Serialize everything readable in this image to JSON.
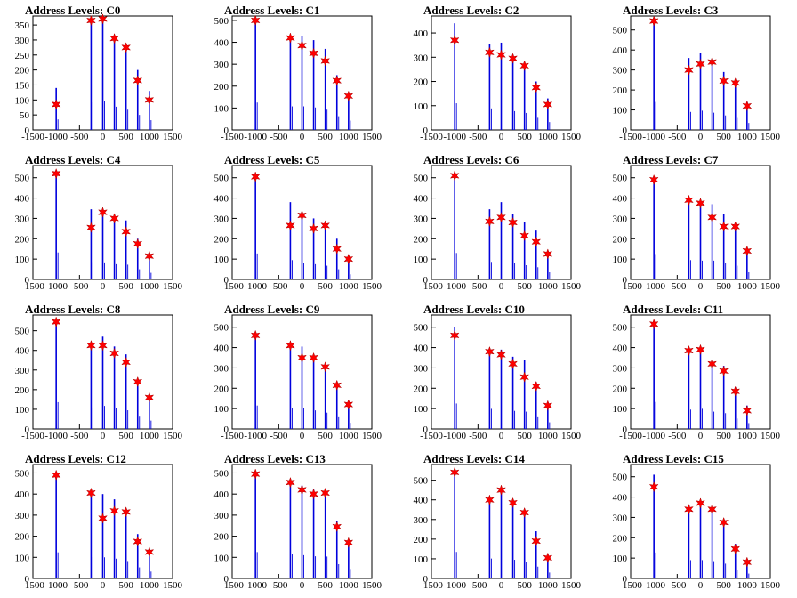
{
  "colors": {
    "bar": "#0000dd",
    "peak_marker": "#ff0000",
    "axis": "#000000"
  },
  "x_axis": {
    "ticks": [
      -1500,
      -1000,
      -500,
      0,
      500,
      1000,
      1500
    ],
    "tick_labels": [
      "-1500",
      "-1000",
      "-500",
      "0",
      "500",
      "1000",
      "1500"
    ],
    "range": [
      -1500,
      1500
    ]
  },
  "chart_data": [
    {
      "type": "bar",
      "title": "Address Levels: C0",
      "ylim": [
        0,
        380
      ],
      "yticks": [
        0,
        50,
        100,
        150,
        200,
        250,
        300,
        350
      ],
      "x": [
        -1000,
        -250,
        0,
        250,
        500,
        750,
        1000
      ],
      "values": [
        140,
        370,
        380,
        310,
        270,
        200,
        130
      ],
      "peaks": [
        {
          "x": -1000,
          "y": 85
        },
        {
          "x": -250,
          "y": 365
        },
        {
          "x": 0,
          "y": 370
        },
        {
          "x": 250,
          "y": 305
        },
        {
          "x": 500,
          "y": 275
        },
        {
          "x": 750,
          "y": 165
        },
        {
          "x": 1000,
          "y": 100
        }
      ]
    },
    {
      "type": "bar",
      "title": "Address Levels: C1",
      "ylim": [
        0,
        520
      ],
      "yticks": [
        0,
        100,
        200,
        300,
        400,
        500
      ],
      "x": [
        -1000,
        -250,
        0,
        250,
        500,
        750,
        1000
      ],
      "values": [
        500,
        430,
        430,
        410,
        370,
        250,
        170
      ],
      "peaks": [
        {
          "x": -1000,
          "y": 500
        },
        {
          "x": -250,
          "y": 420
        },
        {
          "x": 0,
          "y": 385
        },
        {
          "x": 250,
          "y": 350
        },
        {
          "x": 500,
          "y": 315
        },
        {
          "x": 750,
          "y": 225
        },
        {
          "x": 1000,
          "y": 155
        }
      ]
    },
    {
      "type": "bar",
      "title": "Address Levels: C2",
      "ylim": [
        0,
        470
      ],
      "yticks": [
        0,
        100,
        200,
        300,
        400
      ],
      "x": [
        -1000,
        -250,
        0,
        250,
        500,
        750,
        1000
      ],
      "values": [
        440,
        355,
        360,
        310,
        280,
        200,
        130
      ],
      "peaks": [
        {
          "x": -1000,
          "y": 370
        },
        {
          "x": -250,
          "y": 320
        },
        {
          "x": 0,
          "y": 310
        },
        {
          "x": 250,
          "y": 295
        },
        {
          "x": 500,
          "y": 265
        },
        {
          "x": 750,
          "y": 175
        },
        {
          "x": 1000,
          "y": 105
        }
      ]
    },
    {
      "type": "bar",
      "title": "Address Levels: C3",
      "ylim": [
        0,
        570
      ],
      "yticks": [
        0,
        100,
        200,
        300,
        400,
        500
      ],
      "x": [
        -1000,
        -250,
        0,
        250,
        500,
        750,
        1000
      ],
      "values": [
        560,
        360,
        385,
        345,
        290,
        240,
        140
      ],
      "peaks": [
        {
          "x": -1000,
          "y": 545
        },
        {
          "x": -250,
          "y": 300
        },
        {
          "x": 0,
          "y": 330
        },
        {
          "x": 250,
          "y": 340
        },
        {
          "x": 500,
          "y": 245
        },
        {
          "x": 750,
          "y": 235
        },
        {
          "x": 1000,
          "y": 120
        }
      ]
    },
    {
      "type": "bar",
      "title": "Address Levels: C4",
      "ylim": [
        0,
        560
      ],
      "yticks": [
        0,
        100,
        200,
        300,
        400,
        500
      ],
      "x": [
        -1000,
        -250,
        0,
        250,
        500,
        750,
        1000
      ],
      "values": [
        530,
        345,
        335,
        300,
        290,
        200,
        130
      ],
      "peaks": [
        {
          "x": -1000,
          "y": 520
        },
        {
          "x": -250,
          "y": 255
        },
        {
          "x": 0,
          "y": 330
        },
        {
          "x": 250,
          "y": 300
        },
        {
          "x": 500,
          "y": 235
        },
        {
          "x": 750,
          "y": 175
        },
        {
          "x": 1000,
          "y": 115
        }
      ]
    },
    {
      "type": "bar",
      "title": "Address Levels: C5",
      "ylim": [
        0,
        560
      ],
      "yticks": [
        0,
        100,
        200,
        300,
        400,
        500
      ],
      "x": [
        -1000,
        -250,
        0,
        250,
        500,
        750,
        1000
      ],
      "values": [
        510,
        380,
        330,
        300,
        270,
        200,
        100
      ],
      "peaks": [
        {
          "x": -1000,
          "y": 505
        },
        {
          "x": -250,
          "y": 265
        },
        {
          "x": 0,
          "y": 315
        },
        {
          "x": 250,
          "y": 250
        },
        {
          "x": 500,
          "y": 265
        },
        {
          "x": 750,
          "y": 150
        },
        {
          "x": 1000,
          "y": 100
        }
      ]
    },
    {
      "type": "bar",
      "title": "Address Levels: C6",
      "ylim": [
        0,
        560
      ],
      "yticks": [
        0,
        100,
        200,
        300,
        400,
        500
      ],
      "x": [
        -1000,
        -250,
        0,
        250,
        500,
        750,
        1000
      ],
      "values": [
        520,
        345,
        380,
        320,
        280,
        240,
        140
      ],
      "peaks": [
        {
          "x": -1000,
          "y": 510
        },
        {
          "x": -250,
          "y": 285
        },
        {
          "x": 0,
          "y": 305
        },
        {
          "x": 250,
          "y": 280
        },
        {
          "x": 500,
          "y": 215
        },
        {
          "x": 750,
          "y": 185
        },
        {
          "x": 1000,
          "y": 125
        }
      ]
    },
    {
      "type": "bar",
      "title": "Address Levels: C7",
      "ylim": [
        0,
        560
      ],
      "yticks": [
        0,
        100,
        200,
        300,
        400,
        500
      ],
      "x": [
        -1000,
        -250,
        0,
        250,
        500,
        750,
        1000
      ],
      "values": [
        500,
        380,
        370,
        370,
        320,
        270,
        140
      ],
      "peaks": [
        {
          "x": -1000,
          "y": 490
        },
        {
          "x": -250,
          "y": 390
        },
        {
          "x": 0,
          "y": 375
        },
        {
          "x": 250,
          "y": 305
        },
        {
          "x": 500,
          "y": 260
        },
        {
          "x": 750,
          "y": 260
        },
        {
          "x": 1000,
          "y": 140
        }
      ]
    },
    {
      "type": "bar",
      "title": "Address Levels: C8",
      "ylim": [
        0,
        580
      ],
      "yticks": [
        0,
        100,
        200,
        300,
        400,
        500
      ],
      "x": [
        -1000,
        -250,
        0,
        250,
        500,
        750,
        1000
      ],
      "values": [
        545,
        440,
        470,
        420,
        380,
        250,
        170
      ],
      "peaks": [
        {
          "x": -1000,
          "y": 545
        },
        {
          "x": -250,
          "y": 425
        },
        {
          "x": 0,
          "y": 425
        },
        {
          "x": 250,
          "y": 385
        },
        {
          "x": 500,
          "y": 340
        },
        {
          "x": 750,
          "y": 240
        },
        {
          "x": 1000,
          "y": 160
        }
      ]
    },
    {
      "type": "bar",
      "title": "Address Levels: C9",
      "ylim": [
        0,
        560
      ],
      "yticks": [
        0,
        100,
        200,
        300,
        400,
        500
      ],
      "x": [
        -1000,
        -250,
        0,
        250,
        500,
        750,
        1000
      ],
      "values": [
        460,
        410,
        405,
        365,
        320,
        230,
        120
      ],
      "peaks": [
        {
          "x": -1000,
          "y": 460
        },
        {
          "x": -250,
          "y": 410
        },
        {
          "x": 0,
          "y": 350
        },
        {
          "x": 250,
          "y": 350
        },
        {
          "x": 500,
          "y": 305
        },
        {
          "x": 750,
          "y": 215
        },
        {
          "x": 1000,
          "y": 120
        }
      ]
    },
    {
      "type": "bar",
      "title": "Address Levels: C10",
      "ylim": [
        0,
        560
      ],
      "yticks": [
        0,
        100,
        200,
        300,
        400,
        500
      ],
      "x": [
        -1000,
        -250,
        0,
        250,
        500,
        750,
        1000
      ],
      "values": [
        500,
        395,
        390,
        355,
        340,
        230,
        130
      ],
      "peaks": [
        {
          "x": -1000,
          "y": 460
        },
        {
          "x": -250,
          "y": 380
        },
        {
          "x": 0,
          "y": 365
        },
        {
          "x": 250,
          "y": 320
        },
        {
          "x": 500,
          "y": 255
        },
        {
          "x": 750,
          "y": 210
        },
        {
          "x": 1000,
          "y": 115
        }
      ]
    },
    {
      "type": "bar",
      "title": "Address Levels: C11",
      "ylim": [
        0,
        560
      ],
      "yticks": [
        0,
        100,
        200,
        300,
        400,
        500
      ],
      "x": [
        -1000,
        -250,
        0,
        250,
        500,
        750,
        1000
      ],
      "values": [
        530,
        380,
        395,
        340,
        310,
        205,
        115
      ],
      "peaks": [
        {
          "x": -1000,
          "y": 515
        },
        {
          "x": -250,
          "y": 385
        },
        {
          "x": 0,
          "y": 390
        },
        {
          "x": 250,
          "y": 320
        },
        {
          "x": 500,
          "y": 285
        },
        {
          "x": 750,
          "y": 185
        },
        {
          "x": 1000,
          "y": 90
        }
      ]
    },
    {
      "type": "bar",
      "title": "Address Levels: C12",
      "ylim": [
        0,
        540
      ],
      "yticks": [
        0,
        100,
        200,
        300,
        400,
        500
      ],
      "x": [
        -1000,
        -250,
        0,
        250,
        500,
        750,
        1000
      ],
      "values": [
        495,
        405,
        400,
        375,
        330,
        210,
        130
      ],
      "peaks": [
        {
          "x": -1000,
          "y": 490
        },
        {
          "x": -250,
          "y": 405
        },
        {
          "x": 0,
          "y": 285
        },
        {
          "x": 250,
          "y": 320
        },
        {
          "x": 500,
          "y": 315
        },
        {
          "x": 750,
          "y": 175
        },
        {
          "x": 1000,
          "y": 125
        }
      ]
    },
    {
      "type": "bar",
      "title": "Address Levels: C13",
      "ylim": [
        0,
        540
      ],
      "yticks": [
        0,
        100,
        200,
        300,
        400,
        500
      ],
      "x": [
        -1000,
        -250,
        0,
        250,
        500,
        750,
        1000
      ],
      "values": [
        500,
        460,
        440,
        420,
        415,
        270,
        180
      ],
      "peaks": [
        {
          "x": -1000,
          "y": 495
        },
        {
          "x": -250,
          "y": 455
        },
        {
          "x": 0,
          "y": 420
        },
        {
          "x": 250,
          "y": 400
        },
        {
          "x": 500,
          "y": 405
        },
        {
          "x": 750,
          "y": 245
        },
        {
          "x": 1000,
          "y": 170
        }
      ]
    },
    {
      "type": "bar",
      "title": "Address Levels: C14",
      "ylim": [
        0,
        580
      ],
      "yticks": [
        0,
        100,
        200,
        300,
        400,
        500
      ],
      "x": [
        -1000,
        -250,
        0,
        250,
        500,
        750,
        1000
      ],
      "values": [
        540,
        405,
        440,
        380,
        340,
        240,
        120
      ],
      "peaks": [
        {
          "x": -1000,
          "y": 540
        },
        {
          "x": -250,
          "y": 400
        },
        {
          "x": 0,
          "y": 450
        },
        {
          "x": 250,
          "y": 385
        },
        {
          "x": 500,
          "y": 335
        },
        {
          "x": 750,
          "y": 190
        },
        {
          "x": 1000,
          "y": 105
        }
      ]
    },
    {
      "type": "bar",
      "title": "Address Levels: C15",
      "ylim": [
        0,
        560
      ],
      "yticks": [
        0,
        100,
        200,
        300,
        400,
        500
      ],
      "x": [
        -1000,
        -250,
        0,
        250,
        500,
        750,
        1000
      ],
      "values": [
        510,
        360,
        360,
        340,
        290,
        170,
        95
      ],
      "peaks": [
        {
          "x": -1000,
          "y": 450
        },
        {
          "x": -250,
          "y": 340
        },
        {
          "x": 0,
          "y": 370
        },
        {
          "x": 250,
          "y": 340
        },
        {
          "x": 500,
          "y": 275
        },
        {
          "x": 750,
          "y": 145
        },
        {
          "x": 1000,
          "y": 80
        }
      ]
    }
  ]
}
